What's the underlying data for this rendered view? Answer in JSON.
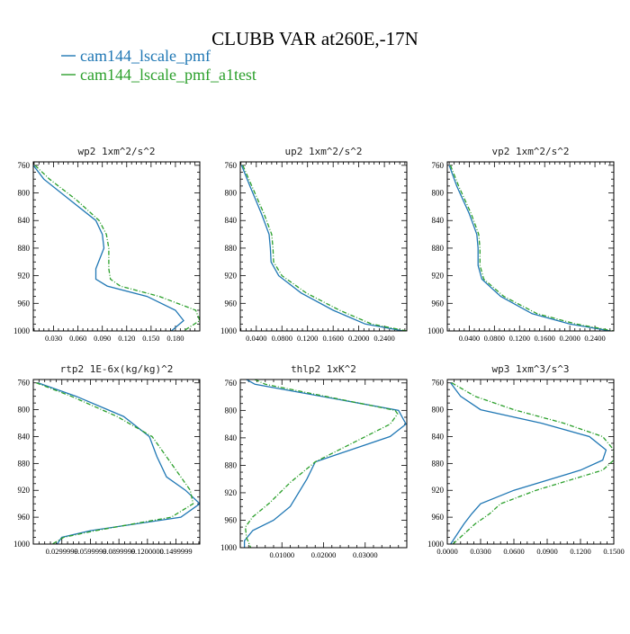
{
  "figure": {
    "title": "CLUBB VAR at260E,-17N",
    "legend": [
      {
        "label": "cam144_lscale_pmf",
        "color": "#1f77b4"
      },
      {
        "label": "cam144_lscale_pmf_a1test",
        "color": "#2ca02c"
      }
    ]
  },
  "chart_data": [
    {
      "type": "line",
      "title": "wp2  1xm^2/s^2",
      "ylim": [
        1000,
        755
      ],
      "yticks": [
        760,
        800,
        840,
        880,
        920,
        960,
        1000
      ],
      "xlim": [
        0.005,
        0.21
      ],
      "xticks": [
        0.03,
        0.06,
        0.09,
        0.12,
        0.15,
        0.18
      ],
      "xtick_labels": [
        "0.030",
        "0.060",
        "0.090",
        "0.120",
        "0.150",
        "0.180"
      ],
      "series": [
        {
          "name": "cam144_lscale_pmf",
          "color": "#1f77b4",
          "dashed": false,
          "x": [
            0.005,
            0.018,
            0.05,
            0.082,
            0.09,
            0.092,
            0.082,
            0.082,
            0.096,
            0.145,
            0.18,
            0.19,
            0.175
          ],
          "y": [
            760,
            780,
            810,
            840,
            860,
            880,
            910,
            925,
            935,
            950,
            970,
            985,
            1000
          ]
        },
        {
          "name": "cam144_lscale_pmf_a1test",
          "color": "#2ca02c",
          "dashed": true,
          "x": [
            0.007,
            0.025,
            0.058,
            0.086,
            0.095,
            0.098,
            0.098,
            0.1,
            0.112,
            0.16,
            0.205,
            0.21,
            0.19
          ],
          "y": [
            760,
            780,
            810,
            840,
            860,
            880,
            910,
            925,
            935,
            950,
            970,
            985,
            1000
          ]
        }
      ]
    },
    {
      "type": "line",
      "title": "up2  1xm^2/s^2",
      "ylim": [
        1000,
        755
      ],
      "yticks": [
        760,
        800,
        840,
        880,
        920,
        960,
        1000
      ],
      "xlim": [
        0.015,
        0.275
      ],
      "xticks": [
        0.04,
        0.08,
        0.12,
        0.16,
        0.2,
        0.24
      ],
      "xtick_labels": [
        "0.0400",
        "0.0800",
        "0.1200",
        "0.1600",
        "0.2000",
        "0.2400"
      ],
      "series": [
        {
          "name": "cam144_lscale_pmf",
          "color": "#1f77b4",
          "dashed": false,
          "x": [
            0.017,
            0.03,
            0.048,
            0.06,
            0.062,
            0.063,
            0.075,
            0.11,
            0.16,
            0.21,
            0.27
          ],
          "y": [
            760,
            790,
            830,
            860,
            880,
            900,
            920,
            945,
            970,
            990,
            1000
          ]
        },
        {
          "name": "cam144_lscale_pmf_a1test",
          "color": "#2ca02c",
          "dashed": true,
          "x": [
            0.019,
            0.033,
            0.052,
            0.064,
            0.066,
            0.067,
            0.08,
            0.118,
            0.17,
            0.22,
            0.275
          ],
          "y": [
            760,
            790,
            830,
            860,
            880,
            900,
            920,
            945,
            970,
            990,
            1000
          ]
        }
      ]
    },
    {
      "type": "line",
      "title": "vp2  1xm^2/s^2",
      "ylim": [
        1000,
        755
      ],
      "yticks": [
        760,
        800,
        840,
        880,
        920,
        960,
        1000
      ],
      "xlim": [
        0.005,
        0.27
      ],
      "xticks": [
        0.04,
        0.08,
        0.12,
        0.16,
        0.2,
        0.24
      ],
      "xtick_labels": [
        "0.0400",
        "0.0800",
        "0.1200",
        "0.1600",
        "0.2000",
        "0.2400"
      ],
      "series": [
        {
          "name": "cam144_lscale_pmf",
          "color": "#1f77b4",
          "dashed": false,
          "x": [
            0.008,
            0.02,
            0.04,
            0.052,
            0.054,
            0.054,
            0.06,
            0.09,
            0.14,
            0.2,
            0.265
          ],
          "y": [
            760,
            790,
            830,
            860,
            880,
            905,
            925,
            950,
            975,
            990,
            1000
          ]
        },
        {
          "name": "cam144_lscale_pmf_a1test",
          "color": "#2ca02c",
          "dashed": true,
          "x": [
            0.01,
            0.023,
            0.043,
            0.055,
            0.057,
            0.057,
            0.063,
            0.095,
            0.148,
            0.21,
            0.27
          ],
          "y": [
            760,
            790,
            830,
            860,
            880,
            905,
            925,
            950,
            975,
            990,
            1000
          ]
        }
      ]
    },
    {
      "type": "line",
      "title": "rtp2  1E-6x(kg/kg)^2",
      "ylim": [
        1000,
        755
      ],
      "yticks": [
        760,
        800,
        840,
        880,
        920,
        960,
        1000
      ],
      "xlim": [
        0.0,
        0.175
      ],
      "xticks": [
        0.03,
        0.06,
        0.09,
        0.12,
        0.15
      ],
      "xtick_labels": [
        "0.0299999",
        "0.0599999",
        "0.0899999",
        "0.1200000",
        "0.1499999"
      ],
      "series": [
        {
          "name": "cam144_lscale_pmf",
          "color": "#1f77b4",
          "dashed": false,
          "x": [
            0.005,
            0.045,
            0.095,
            0.122,
            0.13,
            0.14,
            0.16,
            0.175,
            0.155,
            0.06,
            0.03,
            0.025
          ],
          "y": [
            760,
            780,
            810,
            840,
            870,
            900,
            920,
            940,
            960,
            980,
            990,
            1000
          ]
        },
        {
          "name": "cam144_lscale_pmf_a1test",
          "color": "#2ca02c",
          "dashed": true,
          "x": [
            0.003,
            0.04,
            0.088,
            0.125,
            0.14,
            0.155,
            0.165,
            0.168,
            0.145,
            0.065,
            0.032,
            0.02
          ],
          "y": [
            760,
            780,
            810,
            840,
            870,
            900,
            920,
            940,
            960,
            980,
            990,
            1000
          ]
        }
      ]
    },
    {
      "type": "line",
      "title": "thlp2  1xK^2",
      "ylim": [
        1000,
        755
      ],
      "yticks": [
        760,
        800,
        840,
        880,
        920,
        960,
        1000
      ],
      "xlim": [
        0.0,
        0.04
      ],
      "xticks": [
        0.01,
        0.02,
        0.03
      ],
      "xtick_labels": [
        "0.01000",
        "0.02000",
        "0.03000"
      ],
      "series": [
        {
          "name": "cam144_lscale_pmf",
          "color": "#1f77b4",
          "dashed": false,
          "x": [
            0.0015,
            0.0035,
            0.038,
            0.0398,
            0.036,
            0.018,
            0.016,
            0.012,
            0.008,
            0.003,
            0.001,
            0.001
          ],
          "y": [
            755,
            762,
            800,
            820,
            838,
            875,
            900,
            940,
            960,
            975,
            990,
            1000
          ]
        },
        {
          "name": "cam144_lscale_pmf_a1test",
          "color": "#2ca02c",
          "dashed": true,
          "x": [
            0.0035,
            0.006,
            0.0372,
            0.0378,
            0.036,
            0.018,
            0.012,
            0.007,
            0.003,
            0.0012,
            0.0015,
            0.0025
          ],
          "y": [
            755,
            762,
            800,
            805,
            820,
            875,
            905,
            935,
            955,
            970,
            985,
            1000
          ]
        }
      ]
    },
    {
      "type": "line",
      "title": "wp3  1xm^3/s^3",
      "ylim": [
        1000,
        755
      ],
      "yticks": [
        760,
        800,
        840,
        880,
        920,
        960,
        1000
      ],
      "xlim": [
        0.0,
        0.15
      ],
      "xticks": [
        0.0,
        0.03,
        0.06,
        0.09,
        0.12,
        0.15
      ],
      "xtick_labels": [
        "0.0000",
        "0.0300",
        "0.0600",
        "0.0900",
        "0.1200",
        "0.1500"
      ],
      "series": [
        {
          "name": "cam144_lscale_pmf",
          "color": "#1f77b4",
          "dashed": false,
          "x": [
            0.003,
            0.012,
            0.03,
            0.085,
            0.128,
            0.143,
            0.14,
            0.12,
            0.06,
            0.03,
            0.022,
            0.015,
            0.003
          ],
          "y": [
            760,
            780,
            800,
            820,
            840,
            860,
            875,
            890,
            920,
            940,
            955,
            970,
            1000
          ]
        },
        {
          "name": "cam144_lscale_pmf_a1test",
          "color": "#2ca02c",
          "dashed": true,
          "x": [
            0.004,
            0.025,
            0.06,
            0.105,
            0.14,
            0.15,
            0.15,
            0.14,
            0.08,
            0.048,
            0.038,
            0.025,
            0.005
          ],
          "y": [
            760,
            780,
            800,
            820,
            840,
            860,
            875,
            890,
            920,
            940,
            955,
            970,
            1000
          ]
        }
      ]
    }
  ]
}
